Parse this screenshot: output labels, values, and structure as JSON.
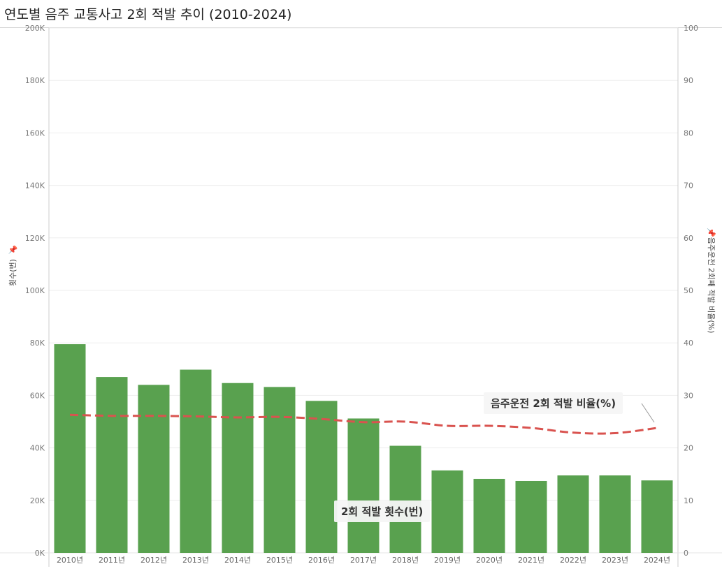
{
  "title": "연도별 음주 교통사고 2회 적발 추이 (2010-2024)",
  "left_axis_title": "횟수(번)",
  "right_axis_title": "음주운전 2회째 적발 비율(%)",
  "pin_icon": "📌",
  "annotations": {
    "bar_label": "2회 적발 횟수(번)",
    "line_label": "음주운전 2회 적발 비율(%)"
  },
  "colors": {
    "bar": "#59a14f",
    "line": "#d9534f",
    "grid": "#eeeeee",
    "tick_text": "#777777"
  },
  "chart_data": {
    "type": "bar",
    "title": "연도별 음주 교통사고 2회 적발 추이 (2010-2024)",
    "categories": [
      "2010년",
      "2011년",
      "2012년",
      "2013년",
      "2014년",
      "2015년",
      "2016년",
      "2017년",
      "2018년",
      "2019년",
      "2020년",
      "2021년",
      "2022년",
      "2023년",
      "2024년"
    ],
    "series": [
      {
        "name": "2회 적발 횟수(번)",
        "type": "bar",
        "axis": "left",
        "values": [
          79500,
          67000,
          64000,
          69800,
          64700,
          63200,
          57900,
          51200,
          40800,
          31400,
          28200,
          27400,
          29500,
          29500,
          27600
        ]
      },
      {
        "name": "음주운전 2회 적발 비율(%)",
        "type": "line",
        "style": "dashed",
        "axis": "right",
        "values": [
          26.3,
          26.1,
          26.1,
          26.0,
          25.8,
          25.9,
          25.5,
          24.9,
          25.0,
          24.2,
          24.2,
          23.8,
          22.9,
          22.8,
          23.8
        ]
      }
    ],
    "ylabel": "횟수(번)",
    "y2label": "음주운전 2회째 적발 비율(%)",
    "ylim": [
      0,
      200000
    ],
    "y2lim": [
      0,
      100
    ],
    "yticks": [
      "0K",
      "20K",
      "40K",
      "60K",
      "80K",
      "100K",
      "120K",
      "140K",
      "160K",
      "180K",
      "200K"
    ],
    "y2ticks": [
      "0",
      "10",
      "20",
      "30",
      "40",
      "50",
      "60",
      "70",
      "80",
      "90",
      "100"
    ],
    "grid": true
  }
}
